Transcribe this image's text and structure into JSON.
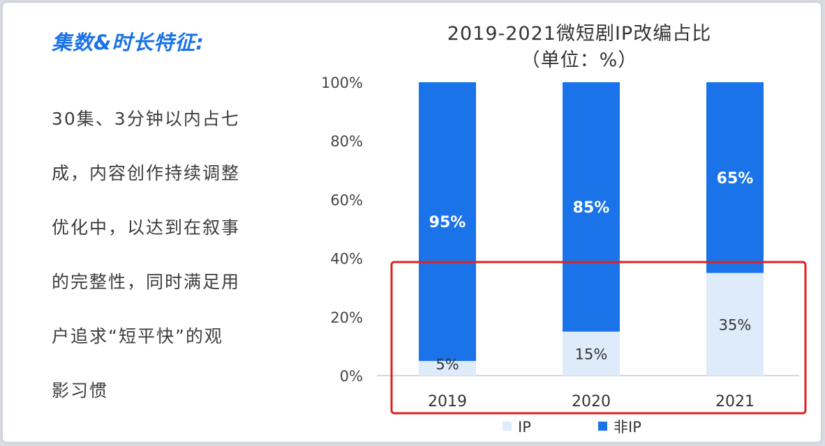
{
  "left": {
    "heading": "集数&时长特征:",
    "lines": [
      "30集、3分钟以内占七",
      "成，内容创作持续调整",
      "优化中，以达到在叙事",
      "的完整性，同时满足用",
      "户追求“短平快”的观",
      "影习惯"
    ]
  },
  "chart_data": {
    "type": "bar",
    "stacked": true,
    "title": "2019-2021微短剧IP改编占比",
    "subtitle": "（单位：%）",
    "categories": [
      "2019",
      "2020",
      "2021"
    ],
    "series": [
      {
        "name": "IP",
        "values": [
          5,
          15,
          35
        ],
        "labels": [
          "5%",
          "15%",
          "35%"
        ],
        "color": "#deebfa",
        "label_color": "#333333"
      },
      {
        "name": "非IP",
        "values": [
          95,
          85,
          65
        ],
        "labels": [
          "95%",
          "85%",
          "65%"
        ],
        "color": "#1a73e8",
        "label_color": "#ffffff"
      }
    ],
    "yticks": [
      0,
      20,
      40,
      60,
      80,
      100
    ],
    "ytick_labels": [
      "0%",
      "20%",
      "40%",
      "60%",
      "80%",
      "100%"
    ],
    "ylim": [
      0,
      100
    ],
    "grid": false,
    "legend": "bottom",
    "highlight_box": {
      "color": "#e02020",
      "y_range": [
        0,
        38
      ]
    }
  }
}
